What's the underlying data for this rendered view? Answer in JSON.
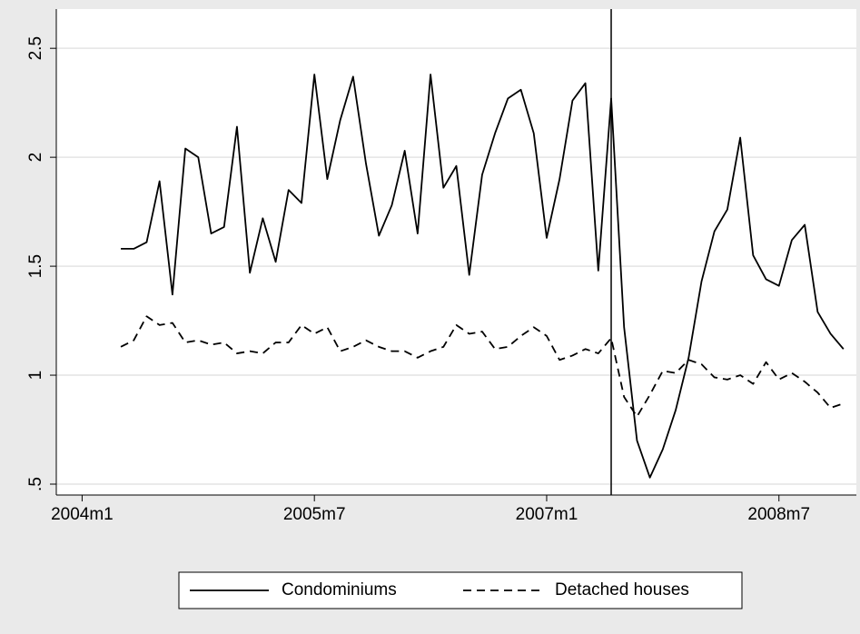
{
  "chart_data": {
    "type": "line",
    "x": [
      "2004m4",
      "2004m5",
      "2004m6",
      "2004m7",
      "2004m8",
      "2004m9",
      "2004m10",
      "2004m11",
      "2004m12",
      "2005m1",
      "2005m2",
      "2005m3",
      "2005m4",
      "2005m5",
      "2005m6",
      "2005m7",
      "2005m8",
      "2005m9",
      "2005m10",
      "2005m11",
      "2005m12",
      "2006m1",
      "2006m2",
      "2006m3",
      "2006m4",
      "2006m5",
      "2006m6",
      "2006m7",
      "2006m8",
      "2006m9",
      "2006m10",
      "2006m11",
      "2006m12",
      "2007m1",
      "2007m2",
      "2007m3",
      "2007m4",
      "2007m5",
      "2007m6",
      "2007m7",
      "2007m8",
      "2007m9",
      "2007m10",
      "2007m11",
      "2007m12",
      "2008m1",
      "2008m2",
      "2008m3",
      "2008m4",
      "2008m5",
      "2008m6",
      "2008m7",
      "2008m8",
      "2008m9",
      "2008m10",
      "2008m11",
      "2008m12"
    ],
    "series": [
      {
        "name": "Condominiums",
        "color": "#000000",
        "style": "solid",
        "values": [
          1.58,
          1.58,
          1.61,
          1.89,
          1.37,
          2.04,
          2.0,
          1.65,
          1.68,
          2.14,
          1.47,
          1.72,
          1.52,
          1.85,
          1.79,
          2.38,
          1.9,
          2.17,
          2.37,
          1.97,
          1.64,
          1.78,
          2.03,
          1.65,
          2.38,
          1.86,
          1.96,
          1.46,
          1.92,
          2.11,
          2.27,
          2.31,
          2.11,
          1.63,
          1.9,
          2.26,
          2.34,
          1.48,
          2.27,
          1.22,
          0.7,
          0.53,
          0.66,
          0.84,
          1.08,
          1.43,
          1.66,
          1.76,
          2.09,
          1.55,
          1.44,
          1.41,
          1.62,
          1.69,
          1.29,
          1.19,
          1.12
        ]
      },
      {
        "name": "Detached houses",
        "color": "#000000",
        "style": "dashed",
        "values": [
          1.13,
          1.16,
          1.27,
          1.23,
          1.24,
          1.15,
          1.16,
          1.14,
          1.15,
          1.1,
          1.11,
          1.1,
          1.15,
          1.15,
          1.23,
          1.19,
          1.22,
          1.11,
          1.13,
          1.16,
          1.13,
          1.11,
          1.11,
          1.08,
          1.11,
          1.13,
          1.23,
          1.19,
          1.2,
          1.12,
          1.13,
          1.18,
          1.22,
          1.18,
          1.07,
          1.09,
          1.12,
          1.1,
          1.17,
          0.9,
          0.81,
          0.91,
          1.02,
          1.01,
          1.07,
          1.05,
          0.99,
          0.98,
          1.0,
          0.96,
          1.06,
          0.98,
          1.01,
          0.97,
          0.92,
          0.85,
          0.87
        ]
      }
    ],
    "xlim": [
      "2003m11",
      "2009m1"
    ],
    "xticks": [
      "2004m1",
      "2005m7",
      "2007m1",
      "2008m7"
    ],
    "xline": "2007m6",
    "ylim": [
      0.45,
      2.68
    ],
    "yticks": [
      {
        "value": 0.5,
        "label": ".5"
      },
      1,
      1.5,
      2,
      2.5
    ],
    "grid": true,
    "legend": "bottom"
  }
}
